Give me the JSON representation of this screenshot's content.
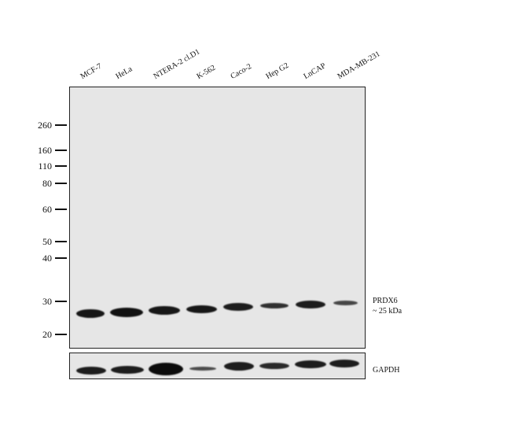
{
  "lanes": [
    "MCF-7",
    "HeLa",
    "NTERA-2 cl.D1",
    "K-562",
    "Caco-2",
    "Hep G2",
    "LnCAP",
    "MDA-MB-231"
  ],
  "markers": [
    "260",
    "160",
    "110",
    "80",
    "60",
    "50",
    "40",
    "30",
    "20"
  ],
  "target": {
    "name": "PRDX6",
    "size": "~ 25 kDa"
  },
  "loading_control": "GAPDH",
  "main_band_intensity": [
    0.9,
    0.95,
    0.9,
    0.9,
    0.85,
    0.7,
    0.85,
    0.5
  ],
  "gapdh_band_intensity": [
    0.85,
    0.85,
    1.0,
    0.45,
    0.85,
    0.75,
    0.85,
    0.85
  ]
}
